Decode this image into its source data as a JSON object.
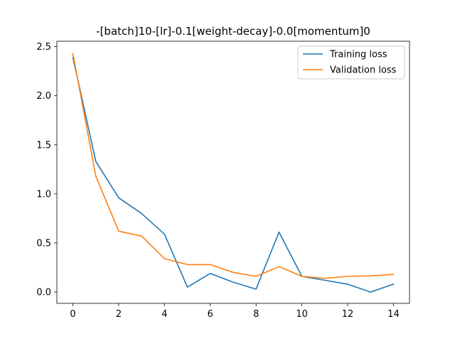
{
  "chart_data": {
    "type": "line",
    "title": "-[batch]10-[lr]-0.1[weight-decay]-0.0[momentum]0",
    "xlabel": "",
    "ylabel": "",
    "x": [
      0,
      1,
      2,
      3,
      4,
      5,
      6,
      7,
      8,
      9,
      10,
      11,
      12,
      13,
      14
    ],
    "xlim": [
      -0.7,
      14.7
    ],
    "ylim": [
      -0.115,
      2.555
    ],
    "xticks": [
      0,
      2,
      4,
      6,
      8,
      10,
      12,
      14
    ],
    "yticks": [
      0.0,
      0.5,
      1.0,
      1.5,
      2.0,
      2.5
    ],
    "xtick_labels": [
      "0",
      "2",
      "4",
      "6",
      "8",
      "10",
      "12",
      "14"
    ],
    "ytick_labels": [
      "0.0",
      "0.5",
      "1.0",
      "1.5",
      "2.0",
      "2.5"
    ],
    "grid": false,
    "legend_position": "top-right",
    "series": [
      {
        "name": "Training loss",
        "color": "#1f77b4",
        "values": [
          2.39,
          1.33,
          0.96,
          0.8,
          0.59,
          0.05,
          0.19,
          0.1,
          0.03,
          0.61,
          0.16,
          0.12,
          0.08,
          0.0,
          0.08
        ]
      },
      {
        "name": "Validation loss",
        "color": "#ff7f0e",
        "values": [
          2.43,
          1.18,
          0.62,
          0.57,
          0.34,
          0.28,
          0.28,
          0.2,
          0.16,
          0.26,
          0.16,
          0.14,
          0.16,
          0.165,
          0.18
        ]
      }
    ]
  }
}
